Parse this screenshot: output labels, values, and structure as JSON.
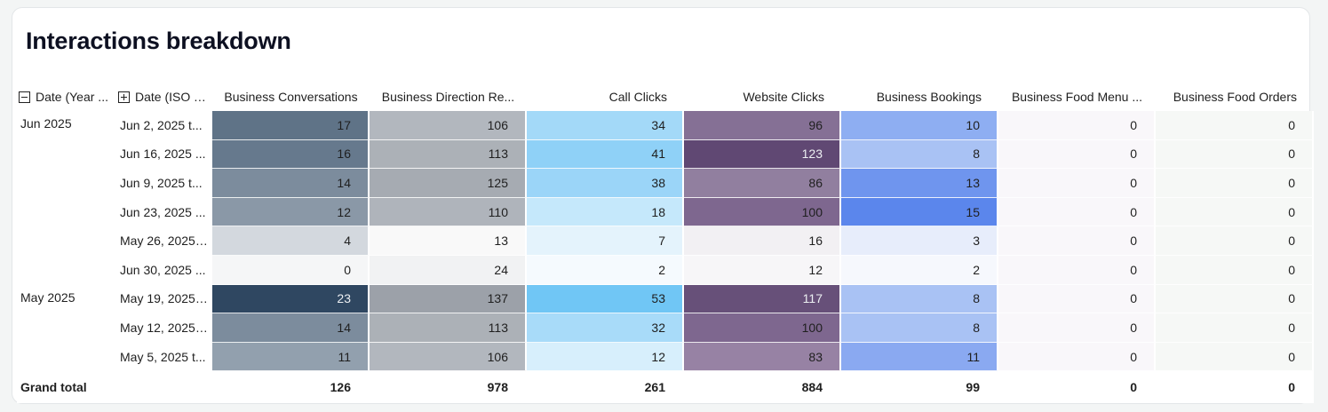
{
  "title": "Interactions breakdown",
  "headers": {
    "date_year": "Date (Year ...",
    "date_iso": "Date (ISO Y...",
    "metrics": [
      "Business Conversations",
      "Business Direction Re...",
      "Call Clicks",
      "Website Clicks",
      "Business Bookings",
      "Business Food Menu ...",
      "Business Food Orders"
    ]
  },
  "rows": [
    {
      "year": "Jun 2025",
      "week": "Jun 2, 2025 t...",
      "values": [
        "17",
        "106",
        "34",
        "96",
        "10",
        "0",
        "0"
      ]
    },
    {
      "year": "",
      "week": "Jun 16, 2025 ...",
      "values": [
        "16",
        "113",
        "41",
        "123",
        "8",
        "0",
        "0"
      ]
    },
    {
      "year": "",
      "week": "Jun 9, 2025 t...",
      "values": [
        "14",
        "125",
        "38",
        "86",
        "13",
        "0",
        "0"
      ]
    },
    {
      "year": "",
      "week": "Jun 23, 2025 ...",
      "values": [
        "12",
        "110",
        "18",
        "100",
        "15",
        "0",
        "0"
      ]
    },
    {
      "year": "",
      "week": "May 26, 2025 ...",
      "values": [
        "4",
        "13",
        "7",
        "16",
        "3",
        "0",
        "0"
      ]
    },
    {
      "year": "",
      "week": "Jun 30, 2025 ...",
      "values": [
        "0",
        "24",
        "2",
        "12",
        "2",
        "0",
        "0"
      ]
    },
    {
      "year": "May 2025",
      "week": "May 19, 2025 ...",
      "values": [
        "23",
        "137",
        "53",
        "117",
        "8",
        "0",
        "0"
      ]
    },
    {
      "year": "",
      "week": "May 12, 2025 ...",
      "values": [
        "14",
        "113",
        "32",
        "100",
        "8",
        "0",
        "0"
      ]
    },
    {
      "year": "",
      "week": "May 5, 2025 t...",
      "values": [
        "11",
        "106",
        "12",
        "83",
        "11",
        "0",
        "0"
      ]
    }
  ],
  "total": {
    "label": "Grand total",
    "values": [
      "126",
      "978",
      "261",
      "884",
      "99",
      "0",
      "0"
    ]
  },
  "colors": {
    "heat": [
      [
        "#5f7387",
        "#b2b7be",
        "#a3d9f8",
        "#857095",
        "#8eaef2",
        "#f9f7fa",
        "#f6f8f6"
      ],
      [
        "#66798d",
        "#acb1b7",
        "#8fd1f7",
        "#604873",
        "#a9c2f4",
        "#f9f7fa",
        "#f6f8f6"
      ],
      [
        "#7c8c9d",
        "#a6abb2",
        "#9bd5f8",
        "#917f9f",
        "#6f95ee",
        "#f9f7fa",
        "#f6f8f6"
      ],
      [
        "#8a98a7",
        "#afb4bb",
        "#c5e8fb",
        "#7e678f",
        "#5b86ec",
        "#f9f7fa",
        "#f6f8f6"
      ],
      [
        "#d3d8de",
        "#f9f9f9",
        "#e4f3fc",
        "#f2f0f3",
        "#e7edfb",
        "#f9f7fa",
        "#f6f8f6"
      ],
      [
        "#f5f6f7",
        "#f1f2f3",
        "#f5fafe",
        "#f7f6f8",
        "#f6f8fd",
        "#f9f7fa",
        "#f6f8f6"
      ],
      [
        "#2f4761",
        "#9ca1a9",
        "#70c6f5",
        "#675079",
        "#a9c2f4",
        "#f9f7fa",
        "#f6f8f6"
      ],
      [
        "#7c8c9d",
        "#acb1b7",
        "#a8dbf9",
        "#7e678f",
        "#a9c2f4",
        "#f9f7fa",
        "#f6f8f6"
      ],
      [
        "#92a0ae",
        "#b2b7be",
        "#d7effc",
        "#9782a4",
        "#8aa9f1",
        "#f9f7fa",
        "#f6f8f6"
      ]
    ],
    "light_text_cells": [
      [
        1,
        3
      ],
      [
        6,
        0
      ],
      [
        6,
        3
      ]
    ]
  }
}
